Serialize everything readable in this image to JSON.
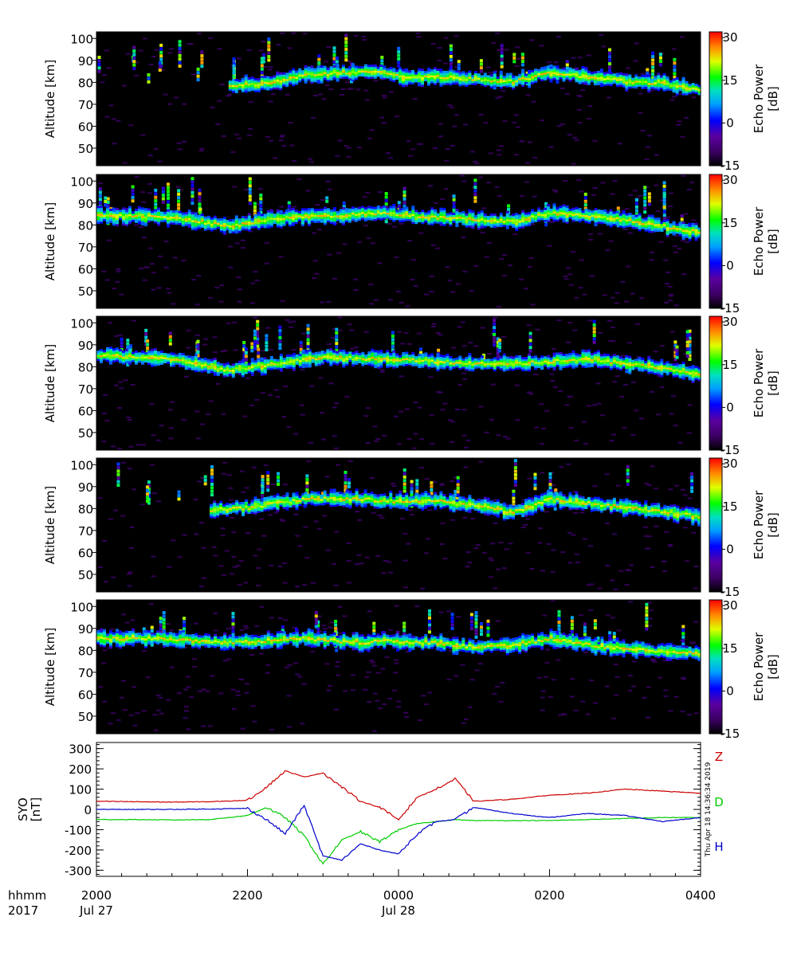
{
  "chart_data": [
    {
      "type": "heatmap",
      "ylabel": "Altitude [km]",
      "ylim": [
        42,
        103
      ],
      "yticks": [
        50,
        60,
        70,
        80,
        90,
        100
      ],
      "colorbar": {
        "label_line1": "Echo Power",
        "label_line2": "[dB]",
        "range": [
          -15,
          32
        ],
        "ticks": [
          -15,
          0,
          15,
          30
        ]
      },
      "echo_layer": [
        {
          "x": "2145",
          "alt": 79
        },
        {
          "x": "2215",
          "alt": 80
        },
        {
          "x": "2245",
          "alt": 84
        },
        {
          "x": "2315",
          "alt": 85
        },
        {
          "x": "2345",
          "alt": 86
        },
        {
          "x": "0000",
          "alt": 83
        },
        {
          "x": "0030",
          "alt": 83
        },
        {
          "x": "0100",
          "alt": 82
        },
        {
          "x": "0130",
          "alt": 81
        },
        {
          "x": "0200",
          "alt": 85
        },
        {
          "x": "0230",
          "alt": 83
        },
        {
          "x": "0300",
          "alt": 81
        },
        {
          "x": "0330",
          "alt": 80
        },
        {
          "x": "0400",
          "alt": 77
        }
      ]
    },
    {
      "type": "heatmap",
      "ylabel": "Altitude [km]",
      "ylim": [
        42,
        103
      ],
      "yticks": [
        50,
        60,
        70,
        80,
        90,
        100
      ],
      "colorbar": {
        "label_line1": "Echo Power",
        "label_line2": "[dB]",
        "range": [
          -15,
          32
        ],
        "ticks": [
          -15,
          0,
          15,
          30
        ]
      },
      "echo_layer": [
        {
          "x": "2000",
          "alt": 85
        },
        {
          "x": "2100",
          "alt": 84
        },
        {
          "x": "2145",
          "alt": 80
        },
        {
          "x": "2230",
          "alt": 84
        },
        {
          "x": "2315",
          "alt": 85
        },
        {
          "x": "2345",
          "alt": 86
        },
        {
          "x": "0030",
          "alt": 84
        },
        {
          "x": "0100",
          "alt": 83
        },
        {
          "x": "0130",
          "alt": 82
        },
        {
          "x": "0200",
          "alt": 86
        },
        {
          "x": "0245",
          "alt": 84
        },
        {
          "x": "0330",
          "alt": 80
        },
        {
          "x": "0400",
          "alt": 77
        }
      ]
    },
    {
      "type": "heatmap",
      "ylabel": "Altitude [km]",
      "ylim": [
        42,
        103
      ],
      "yticks": [
        50,
        60,
        70,
        80,
        90,
        100
      ],
      "colorbar": {
        "label_line1": "Echo Power",
        "label_line2": "[dB]",
        "range": [
          -15,
          32
        ],
        "ticks": [
          -15,
          0,
          15,
          30
        ]
      },
      "echo_layer": [
        {
          "x": "2000",
          "alt": 86
        },
        {
          "x": "2100",
          "alt": 84
        },
        {
          "x": "2145",
          "alt": 79
        },
        {
          "x": "2300",
          "alt": 85
        },
        {
          "x": "2345",
          "alt": 84
        },
        {
          "x": "0030",
          "alt": 83
        },
        {
          "x": "0100",
          "alt": 82
        },
        {
          "x": "0130",
          "alt": 82
        },
        {
          "x": "0200",
          "alt": 83
        },
        {
          "x": "0230",
          "alt": 84
        },
        {
          "x": "0300",
          "alt": 82
        },
        {
          "x": "0330",
          "alt": 80
        },
        {
          "x": "0400",
          "alt": 77
        }
      ]
    },
    {
      "type": "heatmap",
      "ylabel": "Altitude [km]",
      "ylim": [
        42,
        103
      ],
      "yticks": [
        50,
        60,
        70,
        80,
        90,
        100
      ],
      "colorbar": {
        "label_line1": "Echo Power",
        "label_line2": "[dB]",
        "range": [
          -15,
          32
        ],
        "ticks": [
          -15,
          0,
          15,
          30
        ]
      },
      "echo_layer": [
        {
          "x": "2130",
          "alt": 80
        },
        {
          "x": "2200",
          "alt": 81
        },
        {
          "x": "2245",
          "alt": 85
        },
        {
          "x": "2330",
          "alt": 85
        },
        {
          "x": "2345",
          "alt": 84
        },
        {
          "x": "0030",
          "alt": 84
        },
        {
          "x": "0100",
          "alt": 82
        },
        {
          "x": "0130",
          "alt": 79
        },
        {
          "x": "0200",
          "alt": 85
        },
        {
          "x": "0230",
          "alt": 83
        },
        {
          "x": "0300",
          "alt": 81
        },
        {
          "x": "0345",
          "alt": 78
        },
        {
          "x": "0400",
          "alt": 77
        }
      ]
    },
    {
      "type": "heatmap",
      "ylabel": "Altitude [km]",
      "ylim": [
        42,
        103
      ],
      "yticks": [
        50,
        60,
        70,
        80,
        90,
        100
      ],
      "colorbar": {
        "label_line1": "Echo Power",
        "label_line2": "[dB]",
        "range": [
          -15,
          32
        ],
        "ticks": [
          -15,
          0,
          15,
          30
        ]
      },
      "echo_layer": [
        {
          "x": "2000",
          "alt": 86
        },
        {
          "x": "2045",
          "alt": 86
        },
        {
          "x": "2145",
          "alt": 84
        },
        {
          "x": "2245",
          "alt": 86
        },
        {
          "x": "2330",
          "alt": 84
        },
        {
          "x": "2345",
          "alt": 85
        },
        {
          "x": "0030",
          "alt": 84
        },
        {
          "x": "0100",
          "alt": 82
        },
        {
          "x": "0130",
          "alt": 83
        },
        {
          "x": "0200",
          "alt": 86
        },
        {
          "x": "0245",
          "alt": 82
        },
        {
          "x": "0330",
          "alt": 80
        },
        {
          "x": "0400",
          "alt": 79
        }
      ]
    },
    {
      "type": "line",
      "ylabel_line1": "SYO",
      "ylabel_line2": "[nT]",
      "ylim": [
        -330,
        330
      ],
      "yticks": [
        -300,
        -200,
        -100,
        0,
        100,
        200,
        300
      ],
      "side_label": "Thu Apr 18 14:36:34 2019",
      "series": [
        {
          "name": "Z",
          "color": "#cc0000",
          "x": [
            "2000",
            "2030",
            "2100",
            "2130",
            "2200",
            "2215",
            "2230",
            "2245",
            "2300",
            "2315",
            "2330",
            "2345",
            "0000",
            "0015",
            "0030",
            "0045",
            "0100",
            "0130",
            "0200",
            "0230",
            "0300",
            "0330",
            "0400"
          ],
          "values": [
            40,
            38,
            36,
            38,
            45,
            110,
            190,
            160,
            180,
            110,
            40,
            10,
            -50,
            60,
            100,
            150,
            40,
            50,
            70,
            80,
            100,
            90,
            80
          ]
        },
        {
          "name": "D",
          "color": "#00cc00",
          "x": [
            "2000",
            "2030",
            "2100",
            "2130",
            "2200",
            "2215",
            "2230",
            "2245",
            "2300",
            "2315",
            "2330",
            "2345",
            "0000",
            "0015",
            "0030",
            "0045",
            "0100",
            "0130",
            "0200",
            "0230",
            "0300",
            "0330",
            "0400"
          ],
          "values": [
            -50,
            -50,
            -52,
            -50,
            -30,
            10,
            -40,
            -130,
            -270,
            -150,
            -110,
            -160,
            -100,
            -70,
            -60,
            -50,
            -55,
            -55,
            -55,
            -50,
            -45,
            -40,
            -40
          ]
        },
        {
          "name": "H",
          "color": "#0000cc",
          "x": [
            "2000",
            "2030",
            "2100",
            "2130",
            "2200",
            "2215",
            "2230",
            "2245",
            "2300",
            "2315",
            "2330",
            "2345",
            "0000",
            "0015",
            "0030",
            "0045",
            "0100",
            "0130",
            "0200",
            "0230",
            "0300",
            "0330",
            "0400"
          ],
          "values": [
            0,
            0,
            0,
            2,
            5,
            -50,
            -120,
            20,
            -230,
            -250,
            -170,
            -200,
            -220,
            -120,
            -60,
            -50,
            10,
            -20,
            -40,
            -20,
            -30,
            -60,
            -40
          ]
        }
      ]
    }
  ],
  "x_axis": {
    "row1_label": "hhmm",
    "row2_label": "2017",
    "ticks": [
      {
        "label": "2000",
        "date": "Jul 27"
      },
      {
        "label": "2200",
        "date": ""
      },
      {
        "label": "0000",
        "date": "Jul 28"
      },
      {
        "label": "0200",
        "date": ""
      },
      {
        "label": "0400",
        "date": ""
      }
    ]
  }
}
